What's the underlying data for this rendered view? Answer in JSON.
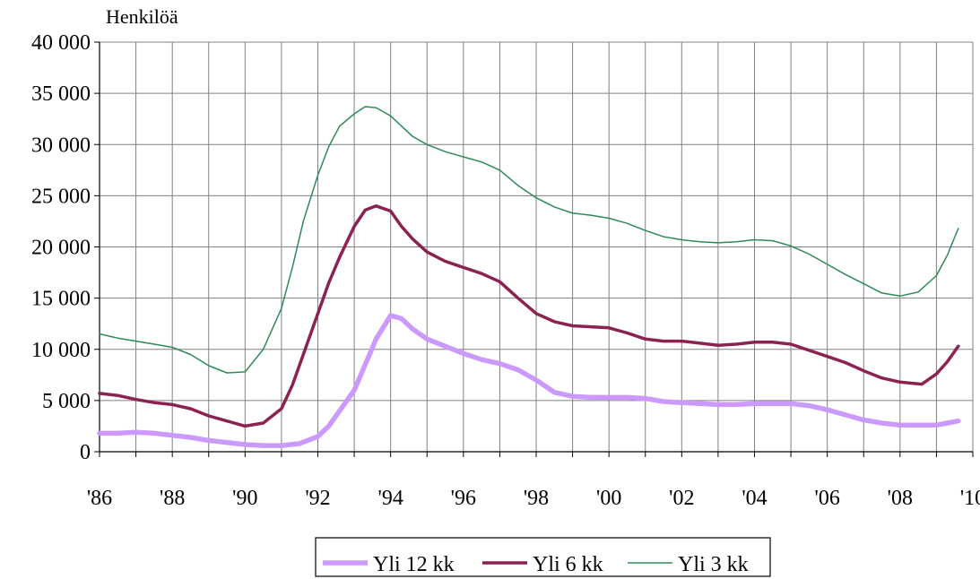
{
  "chart_data": {
    "type": "line",
    "ylabel": "Henkilöä",
    "xlabel": "",
    "ylim": [
      0,
      40000
    ],
    "xlim": [
      1986,
      2010
    ],
    "grid": true,
    "legend_position": "bottom-center",
    "y_ticks": [
      0,
      5000,
      10000,
      15000,
      20000,
      25000,
      30000,
      35000,
      40000
    ],
    "y_tick_labels": [
      "0",
      "5 000",
      "10 000",
      "15 000",
      "20 000",
      "25 000",
      "30 000",
      "35 000",
      "40 000"
    ],
    "x_ticks": [
      1986,
      1988,
      1990,
      1992,
      1994,
      1996,
      1998,
      2000,
      2002,
      2004,
      2006,
      2008,
      2010
    ],
    "x_tick_labels": [
      "'86",
      "'88",
      "'90",
      "'92",
      "'94",
      "'96",
      "'98",
      "'00",
      "'02",
      "'04",
      "'06",
      "'08",
      "'10"
    ],
    "series": [
      {
        "name": "Yli 12 kk",
        "color": "#cc99ff",
        "x": [
          1986.0,
          1986.5,
          1987.0,
          1987.5,
          1988.0,
          1988.5,
          1989.0,
          1989.5,
          1990.0,
          1990.5,
          1991.0,
          1991.5,
          1992.0,
          1992.3,
          1992.6,
          1993.0,
          1993.3,
          1993.6,
          1994.0,
          1994.3,
          1994.6,
          1995.0,
          1995.5,
          1996.0,
          1996.5,
          1997.0,
          1997.5,
          1998.0,
          1998.5,
          1999.0,
          1999.5,
          2000.0,
          2000.5,
          2001.0,
          2001.5,
          2002.0,
          2002.5,
          2003.0,
          2003.5,
          2004.0,
          2004.5,
          2005.0,
          2005.5,
          2006.0,
          2006.5,
          2007.0,
          2007.5,
          2008.0,
          2008.5,
          2009.0,
          2009.3,
          2009.6
        ],
        "values": [
          1800,
          1800,
          1900,
          1800,
          1600,
          1400,
          1100,
          900,
          700,
          600,
          600,
          800,
          1500,
          2500,
          4000,
          6000,
          8500,
          11000,
          13300,
          13000,
          12000,
          11000,
          10300,
          9600,
          9000,
          8600,
          8000,
          7000,
          5800,
          5400,
          5300,
          5300,
          5300,
          5200,
          4900,
          4800,
          4700,
          4600,
          4600,
          4700,
          4700,
          4700,
          4500,
          4100,
          3600,
          3100,
          2800,
          2600,
          2600,
          2600,
          2800,
          3000
        ]
      },
      {
        "name": "Yli 6 kk",
        "color": "#8b2252",
        "x": [
          1986.0,
          1986.5,
          1987.0,
          1987.5,
          1988.0,
          1988.5,
          1989.0,
          1989.5,
          1990.0,
          1990.5,
          1991.0,
          1991.3,
          1991.6,
          1992.0,
          1992.3,
          1992.6,
          1993.0,
          1993.3,
          1993.6,
          1994.0,
          1994.3,
          1994.6,
          1995.0,
          1995.5,
          1996.0,
          1996.5,
          1997.0,
          1997.5,
          1998.0,
          1998.5,
          1999.0,
          1999.5,
          2000.0,
          2000.5,
          2001.0,
          2001.5,
          2002.0,
          2002.5,
          2003.0,
          2003.5,
          2004.0,
          2004.5,
          2005.0,
          2005.5,
          2006.0,
          2006.5,
          2007.0,
          2007.5,
          2008.0,
          2008.3,
          2008.6,
          2009.0,
          2009.3,
          2009.6
        ],
        "values": [
          5700,
          5500,
          5100,
          4800,
          4600,
          4200,
          3500,
          3000,
          2500,
          2800,
          4200,
          6500,
          9500,
          13500,
          16500,
          19000,
          22000,
          23600,
          24000,
          23500,
          22000,
          20800,
          19500,
          18600,
          18000,
          17400,
          16600,
          15000,
          13500,
          12700,
          12300,
          12200,
          12100,
          11600,
          11000,
          10800,
          10800,
          10600,
          10400,
          10500,
          10700,
          10700,
          10500,
          9900,
          9300,
          8700,
          7900,
          7200,
          6800,
          6700,
          6600,
          7600,
          8800,
          10300
        ]
      },
      {
        "name": "Yli 3 kk",
        "color": "#2e8b57",
        "x": [
          1986.0,
          1986.5,
          1987.0,
          1987.5,
          1988.0,
          1988.5,
          1989.0,
          1989.5,
          1990.0,
          1990.5,
          1991.0,
          1991.3,
          1991.6,
          1992.0,
          1992.3,
          1992.6,
          1993.0,
          1993.3,
          1993.6,
          1994.0,
          1994.3,
          1994.6,
          1995.0,
          1995.5,
          1996.0,
          1996.5,
          1997.0,
          1997.5,
          1998.0,
          1998.5,
          1999.0,
          1999.5,
          2000.0,
          2000.5,
          2001.0,
          2001.5,
          2002.0,
          2002.5,
          2003.0,
          2003.5,
          2004.0,
          2004.5,
          2005.0,
          2005.5,
          2006.0,
          2006.5,
          2007.0,
          2007.5,
          2008.0,
          2008.5,
          2009.0,
          2009.3,
          2009.6
        ],
        "values": [
          11500,
          11100,
          10800,
          10500,
          10200,
          9500,
          8400,
          7700,
          7800,
          10000,
          14000,
          18000,
          22500,
          27000,
          29800,
          31800,
          33000,
          33700,
          33600,
          32800,
          31800,
          30800,
          30000,
          29300,
          28800,
          28300,
          27500,
          26000,
          24800,
          23900,
          23300,
          23100,
          22800,
          22300,
          21600,
          21000,
          20700,
          20500,
          20400,
          20500,
          20700,
          20600,
          20100,
          19300,
          18300,
          17300,
          16400,
          15500,
          15200,
          15600,
          17200,
          19200,
          21800
        ]
      }
    ]
  }
}
